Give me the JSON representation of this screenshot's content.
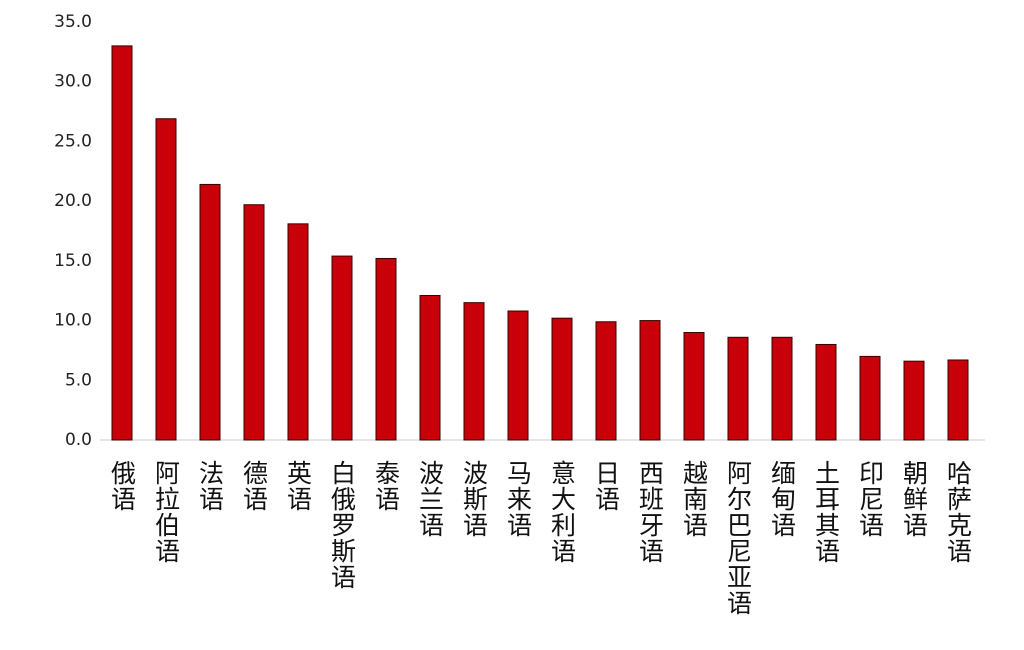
{
  "chart_data": {
    "type": "bar",
    "categories": [
      "俄语",
      "阿拉伯语",
      "法语",
      "德语",
      "英语",
      "白俄罗斯语",
      "泰语",
      "波兰语",
      "波斯语",
      "马来语",
      "意大利语",
      "日语",
      "西班牙语",
      "越南语",
      "阿尔巴尼亚语",
      "缅甸语",
      "土耳其语",
      "印尼语",
      "朝鲜语",
      "哈萨克语"
    ],
    "values": [
      33.0,
      26.9,
      21.4,
      19.7,
      18.1,
      15.4,
      15.2,
      12.1,
      11.5,
      10.8,
      10.2,
      9.9,
      10.0,
      9.0,
      8.6,
      8.6,
      8.0,
      7.0,
      6.6,
      6.7
    ],
    "color": "#c8000a",
    "ylim": [
      0,
      35
    ],
    "yticks": [
      {
        "value": 0,
        "label": "0.0"
      },
      {
        "value": 5,
        "label": "5.0"
      },
      {
        "value": 10,
        "label": "10.0"
      },
      {
        "value": 15,
        "label": "15.0"
      },
      {
        "value": 20,
        "label": "20.0"
      },
      {
        "value": 25,
        "label": "25.0"
      },
      {
        "value": 30,
        "label": "30.0"
      },
      {
        "value": 35,
        "label": "35.0"
      }
    ],
    "grid": false
  }
}
